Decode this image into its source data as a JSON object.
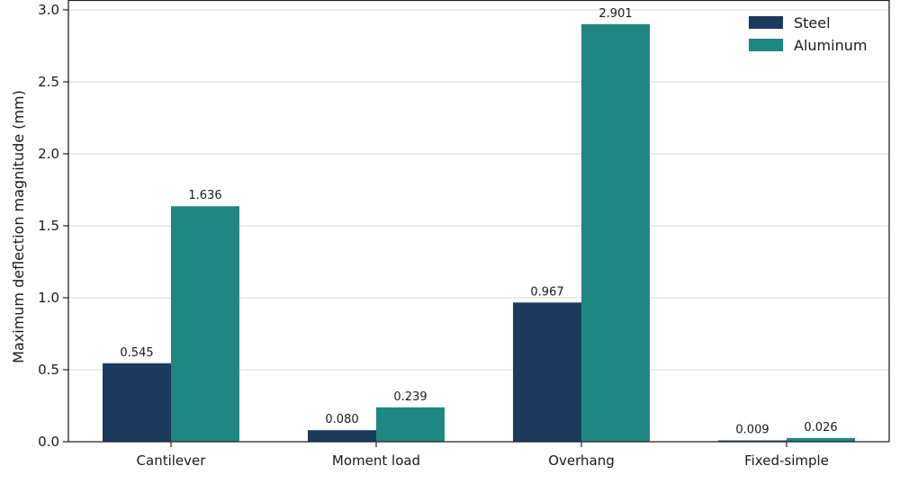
{
  "chart_data": {
    "type": "bar",
    "title": "",
    "xlabel": "",
    "ylabel": "Maximum deflection magnitude (mm)",
    "categories": [
      "Cantilever",
      "Moment load",
      "Overhang",
      "Fixed-simple"
    ],
    "series": [
      {
        "name": "Steel",
        "values": [
          0.545,
          0.08,
          0.967,
          0.009
        ],
        "labels": [
          "0.545",
          "0.080",
          "0.967",
          "0.009"
        ],
        "color": "#1b3a5c"
      },
      {
        "name": "Aluminum",
        "values": [
          1.636,
          0.239,
          2.901,
          0.026
        ],
        "labels": [
          "1.636",
          "0.239",
          "2.901",
          "0.026"
        ],
        "color": "#1f8781"
      }
    ],
    "ylim": [
      0,
      3.0
    ],
    "yticks": [
      "0.0",
      "0.5",
      "1.0",
      "1.5",
      "2.0",
      "2.5",
      "3.0"
    ],
    "grid": "horizontal",
    "legend": "top-right"
  }
}
